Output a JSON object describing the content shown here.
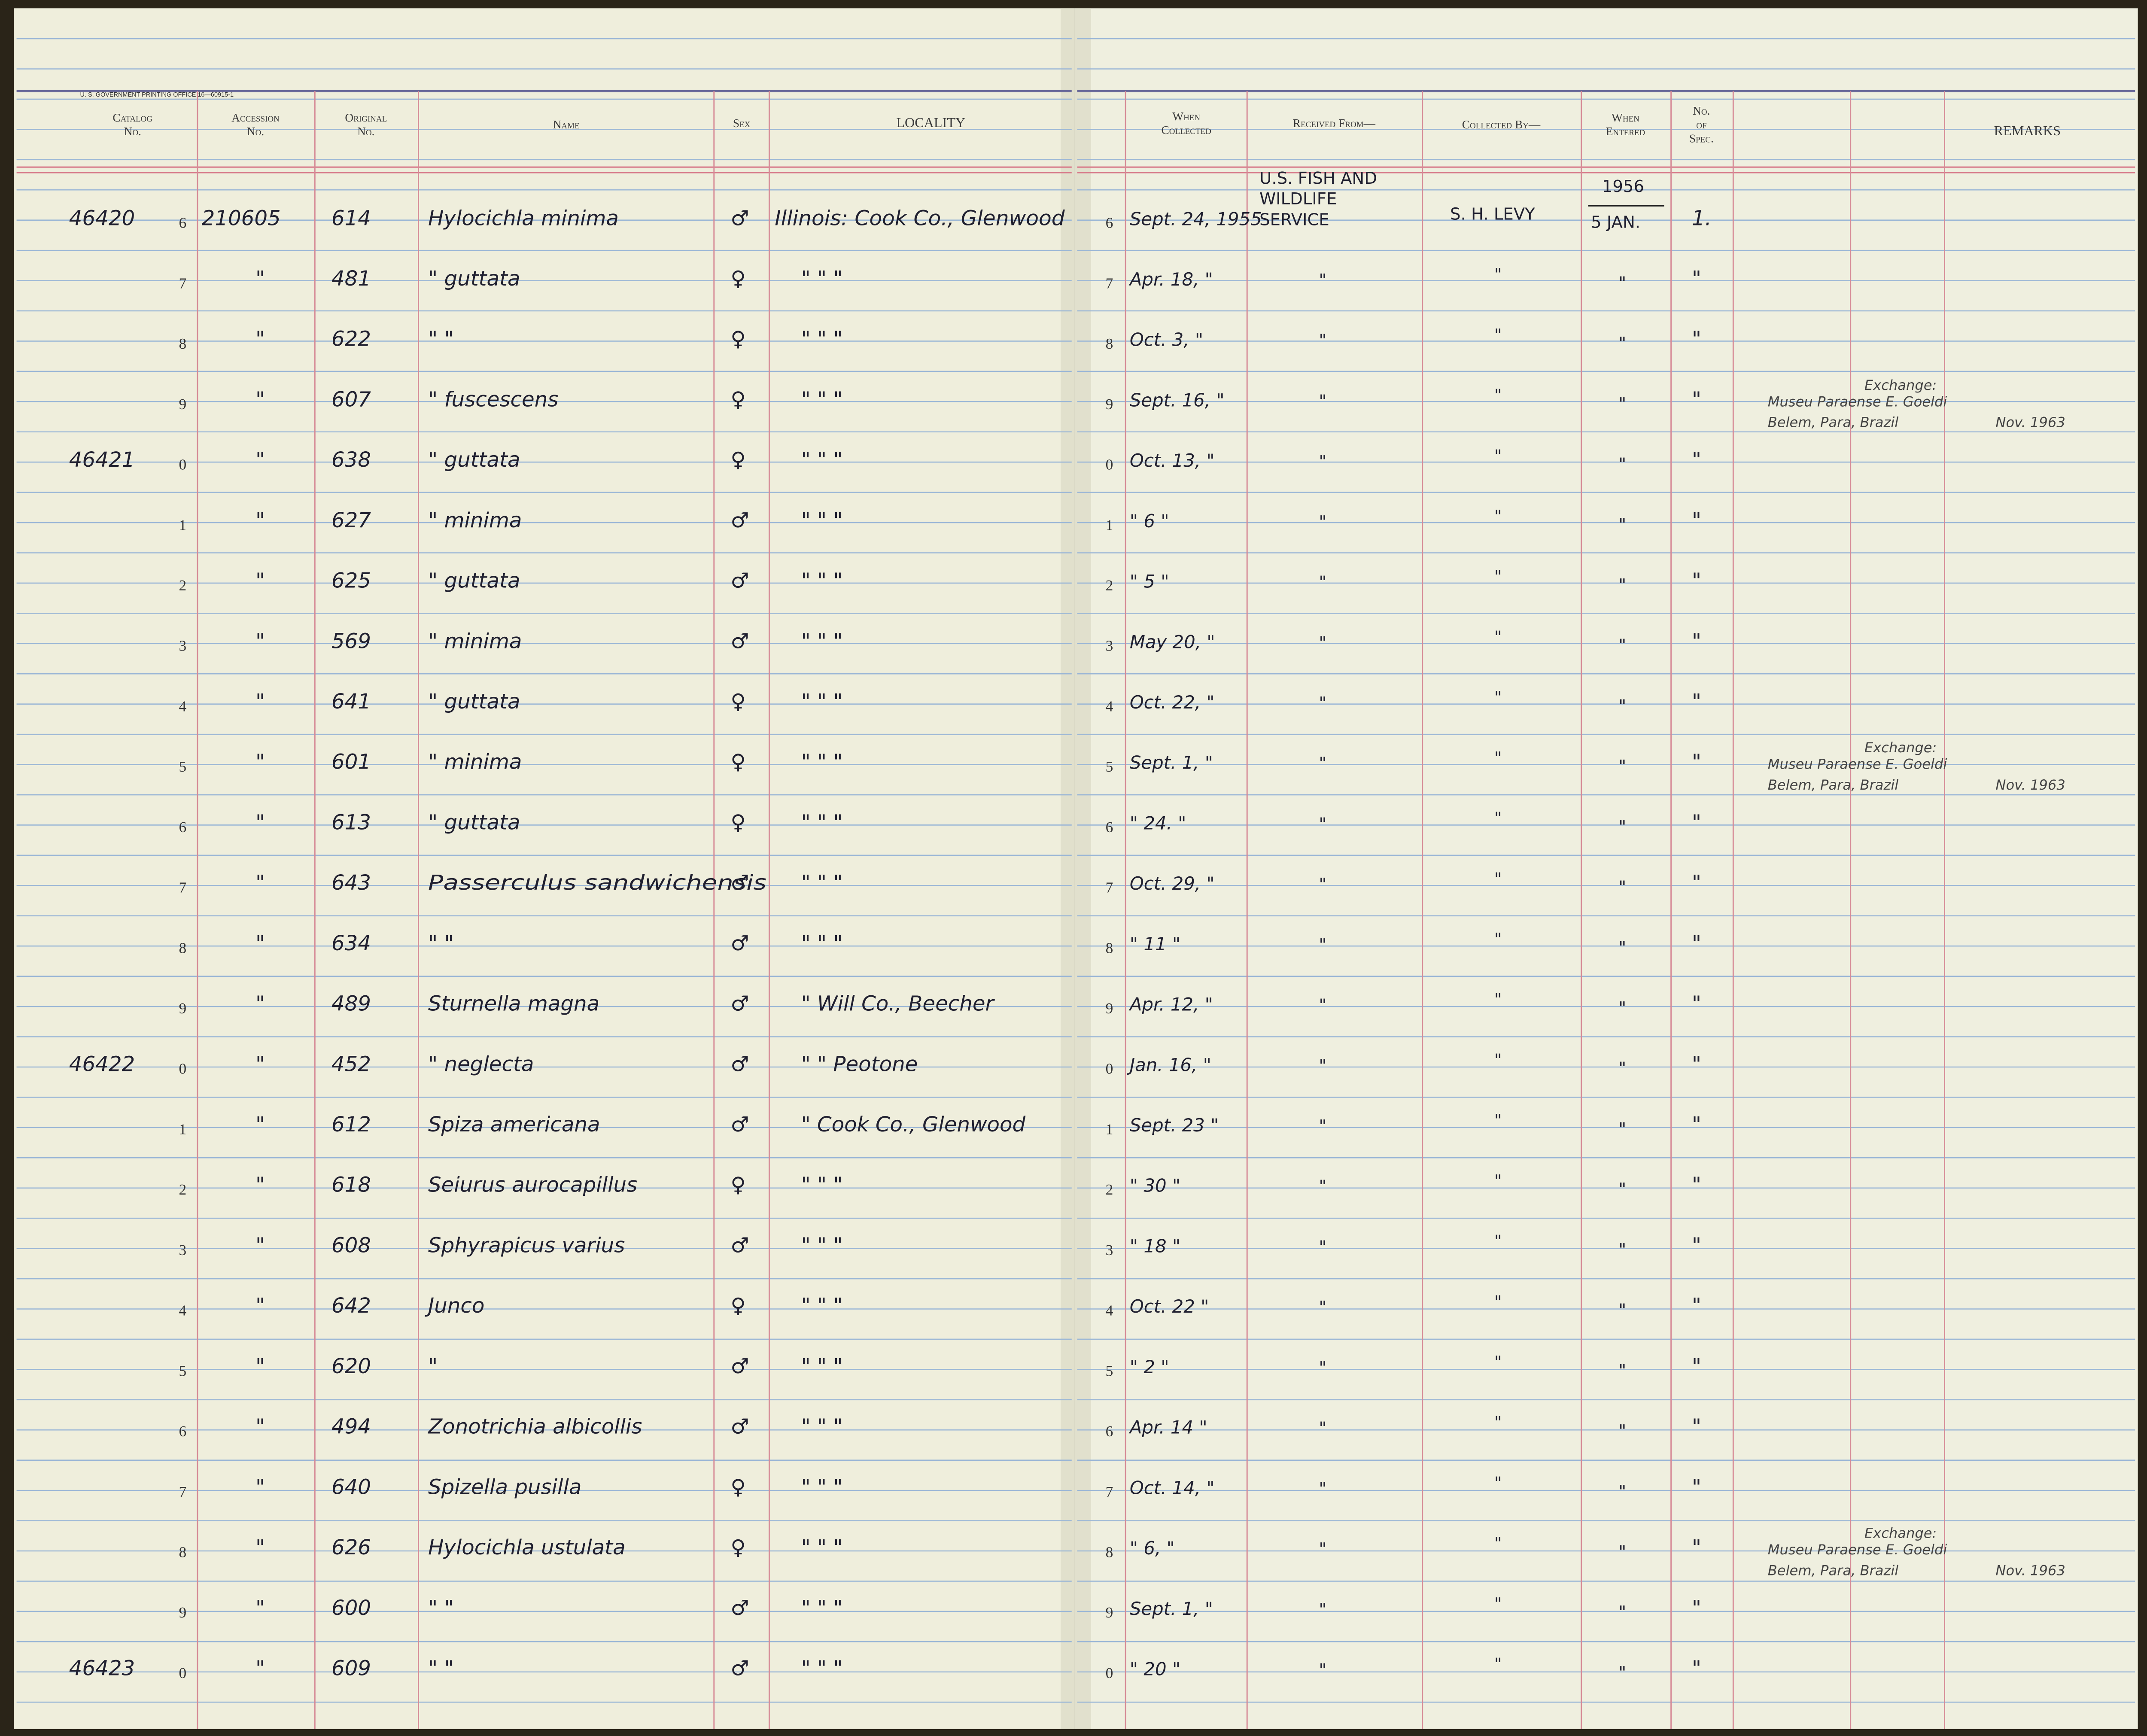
{
  "header": {
    "printer": "U. S. GOVERNMENT PRINTING OFFICE   16—60915-1",
    "columns": {
      "catalog": [
        "Catalog",
        "No."
      ],
      "accession": [
        "Accession",
        "No."
      ],
      "original": [
        "Original",
        "No."
      ],
      "name": "Name",
      "sex": "Sex",
      "locality": "LOCALITY",
      "when_collected": [
        "When",
        "Collected"
      ],
      "received_from": "Received From—",
      "collected_by": "Collected By—",
      "when_entered": [
        "When",
        "Entered"
      ],
      "no_spec": [
        "No.",
        "of",
        "Spec."
      ],
      "remarks": "REMARKS"
    }
  },
  "rows": [
    {
      "catalog": "46420",
      "digit": "6",
      "accession": "210605",
      "original": "614",
      "name": "Hylocichla minima",
      "sex": "♂",
      "locality": "Illinois: Cook Co., Glenwood",
      "when_collected": "Sept. 24, 1955",
      "received_from": [
        "U.S. FISH AND",
        "WILDLIFE",
        "SERVICE"
      ],
      "collected_by": "S. H. LEVY",
      "when_entered": [
        "1956",
        "5 JAN."
      ],
      "no_spec": "1."
    },
    {
      "digit": "7",
      "accession": "\"",
      "original": "481",
      "name": "\"   guttata",
      "sex": "♀",
      "locality": "\"        \"        \"",
      "when_collected": "Apr. 18, \"",
      "received_from": [
        "\""
      ],
      "collected_by": "\"",
      "when_entered": [
        "\""
      ],
      "no_spec": "\""
    },
    {
      "digit": "8",
      "accession": "\"",
      "original": "622",
      "name": "\"        \"",
      "sex": "♀",
      "locality": "\"        \"        \"",
      "when_collected": "Oct. 3, \"",
      "received_from": [
        "\""
      ],
      "collected_by": "\"",
      "when_entered": [
        "\""
      ],
      "no_spec": "\""
    },
    {
      "digit": "9",
      "accession": "\"",
      "original": "607",
      "name": "\"   fuscescens",
      "sex": "♀",
      "locality": "\"        \"        \"",
      "when_collected": "Sept. 16, \"",
      "received_from": [
        "\""
      ],
      "collected_by": "\"",
      "when_entered": [
        "\""
      ],
      "no_spec": "\"",
      "remarks": {
        "note": "Exchange:",
        "lines": [
          "Museu Paraense E. Goeldi",
          "Belem, Para, Brazil"
        ],
        "date": "Nov. 1963"
      }
    },
    {
      "catalog": "46421",
      "digit": "0",
      "accession": "\"",
      "original": "638",
      "name": "\"   guttata",
      "sex": "♀",
      "locality": "\"        \"        \"",
      "when_collected": "Oct. 13, \"",
      "received_from": [
        "\""
      ],
      "collected_by": "\"",
      "when_entered": [
        "\""
      ],
      "no_spec": "\""
    },
    {
      "digit": "1",
      "accession": "\"",
      "original": "627",
      "name": "\"   minima",
      "sex": "♂",
      "locality": "\"        \"        \"",
      "when_collected": "\"  6  \"",
      "received_from": [
        "\""
      ],
      "collected_by": "\"",
      "when_entered": [
        "\""
      ],
      "no_spec": "\""
    },
    {
      "digit": "2",
      "accession": "\"",
      "original": "625",
      "name": "\"   guttata",
      "sex": "♂",
      "locality": "\"        \"        \"",
      "when_collected": "\"  5  \"",
      "received_from": [
        "\""
      ],
      "collected_by": "\"",
      "when_entered": [
        "\""
      ],
      "no_spec": "\""
    },
    {
      "digit": "3",
      "accession": "\"",
      "original": "569",
      "name": "\"   minima",
      "sex": "♂",
      "locality": "\"        \"        \"",
      "when_collected": "May 20, \"",
      "received_from": [
        "\""
      ],
      "collected_by": "\"",
      "when_entered": [
        "\""
      ],
      "no_spec": "\""
    },
    {
      "digit": "4",
      "accession": "\"",
      "original": "641",
      "name": "\"   guttata",
      "sex": "♀",
      "locality": "\"        \"        \"",
      "when_collected": "Oct. 22, \"",
      "received_from": [
        "\""
      ],
      "collected_by": "\"",
      "when_entered": [
        "\""
      ],
      "no_spec": "\""
    },
    {
      "digit": "5",
      "accession": "\"",
      "original": "601",
      "name": "\"   minima",
      "sex": "♀",
      "locality": "\"        \"        \"",
      "when_collected": "Sept. 1, \"",
      "received_from": [
        "\""
      ],
      "collected_by": "\"",
      "when_entered": [
        "\""
      ],
      "no_spec": "\"",
      "remarks": {
        "note": "Exchange:",
        "lines": [
          "Museu Paraense E. Goeldi",
          "Belem, Para, Brazil"
        ],
        "date": "Nov. 1963"
      }
    },
    {
      "digit": "6",
      "accession": "\"",
      "original": "613",
      "name": "\"   guttata",
      "sex": "♀",
      "locality": "\"        \"        \"",
      "when_collected": "\"  24.  \"",
      "received_from": [
        "\""
      ],
      "collected_by": "\"",
      "when_entered": [
        "\""
      ],
      "no_spec": "\""
    },
    {
      "digit": "7",
      "accession": "\"",
      "original": "643",
      "name": "Passerculus sandwichensis",
      "sex": "♂",
      "locality": "\"        \"        \"",
      "when_collected": "Oct. 29, \"",
      "received_from": [
        "\""
      ],
      "collected_by": "\"",
      "when_entered": [
        "\""
      ],
      "no_spec": "\""
    },
    {
      "digit": "8",
      "accession": "\"",
      "original": "634",
      "name": "\"        \"",
      "sex": "♂",
      "locality": "\"        \"        \"",
      "when_collected": "\"  11  \"",
      "received_from": [
        "\""
      ],
      "collected_by": "\"",
      "when_entered": [
        "\""
      ],
      "no_spec": "\""
    },
    {
      "digit": "9",
      "accession": "\"",
      "original": "489",
      "name": "Sturnella magna",
      "sex": "♂",
      "locality": "\"   Will Co., Beecher",
      "when_collected": "Apr. 12, \"",
      "received_from": [
        "\""
      ],
      "collected_by": "\"",
      "when_entered": [
        "\""
      ],
      "no_spec": "\""
    },
    {
      "catalog": "46422",
      "digit": "0",
      "accession": "\"",
      "original": "452",
      "name": "\"   neglecta",
      "sex": "♂",
      "locality": "\"     \"     Peotone",
      "when_collected": "Jan. 16, \"",
      "received_from": [
        "\""
      ],
      "collected_by": "\"",
      "when_entered": [
        "\""
      ],
      "no_spec": "\""
    },
    {
      "digit": "1",
      "accession": "\"",
      "original": "612",
      "name": "Spiza americana",
      "sex": "♂",
      "locality": "\"   Cook Co., Glenwood",
      "when_collected": "Sept. 23 \"",
      "received_from": [
        "\""
      ],
      "collected_by": "\"",
      "when_entered": [
        "\""
      ],
      "no_spec": "\""
    },
    {
      "digit": "2",
      "accession": "\"",
      "original": "618",
      "name": "Seiurus aurocapillus",
      "sex": "♀",
      "locality": "\"        \"        \"",
      "when_collected": "\"  30  \"",
      "received_from": [
        "\""
      ],
      "collected_by": "\"",
      "when_entered": [
        "\""
      ],
      "no_spec": "\""
    },
    {
      "digit": "3",
      "accession": "\"",
      "original": "608",
      "name": "Sphyrapicus varius",
      "sex": "♂",
      "locality": "\"        \"        \"",
      "when_collected": "\"  18  \"",
      "received_from": [
        "\""
      ],
      "collected_by": "\"",
      "when_entered": [
        "\""
      ],
      "no_spec": "\""
    },
    {
      "digit": "4",
      "accession": "\"",
      "original": "642",
      "name": "Junco",
      "sex": "♀",
      "locality": "\"        \"        \"",
      "when_collected": "Oct. 22 \"",
      "received_from": [
        "\""
      ],
      "collected_by": "\"",
      "when_entered": [
        "\""
      ],
      "no_spec": "\""
    },
    {
      "digit": "5",
      "accession": "\"",
      "original": "620",
      "name": "\"",
      "sex": "♂",
      "locality": "\"        \"        \"",
      "when_collected": "\"  2  \"",
      "received_from": [
        "\""
      ],
      "collected_by": "\"",
      "when_entered": [
        "\""
      ],
      "no_spec": "\""
    },
    {
      "digit": "6",
      "accession": "\"",
      "original": "494",
      "name": "Zonotrichia albicollis",
      "sex": "♂",
      "locality": "\"        \"        \"",
      "when_collected": "Apr. 14 \"",
      "received_from": [
        "\""
      ],
      "collected_by": "\"",
      "when_entered": [
        "\""
      ],
      "no_spec": "\""
    },
    {
      "digit": "7",
      "accession": "\"",
      "original": "640",
      "name": "Spizella pusilla",
      "sex": "♀",
      "locality": "\"        \"        \"",
      "when_collected": "Oct. 14, \"",
      "received_from": [
        "\""
      ],
      "collected_by": "\"",
      "when_entered": [
        "\""
      ],
      "no_spec": "\""
    },
    {
      "digit": "8",
      "accession": "\"",
      "original": "626",
      "name": "Hylocichla ustulata",
      "sex": "♀",
      "locality": "\"        \"        \"",
      "when_collected": "\"  6,  \"",
      "received_from": [
        "\""
      ],
      "collected_by": "\"",
      "when_entered": [
        "\""
      ],
      "no_spec": "\"",
      "remarks": {
        "note": "Exchange:",
        "lines": [
          "Museu Paraense E. Goeldi",
          "Belem, Para, Brazil"
        ],
        "date": "Nov. 1963"
      }
    },
    {
      "digit": "9",
      "accession": "\"",
      "original": "600",
      "name": "\"        \"",
      "sex": "♂",
      "locality": "\"        \"        \"",
      "when_collected": "Sept. 1, \"",
      "received_from": [
        "\""
      ],
      "collected_by": "\"",
      "when_entered": [
        "\""
      ],
      "no_spec": "\""
    },
    {
      "catalog": "46423",
      "digit": "0",
      "accession": "\"",
      "original": "609",
      "name": "\"        \"",
      "sex": "♂",
      "locality": "\"        \"        \"",
      "when_collected": "\"  20  \"",
      "received_from": [
        "\""
      ],
      "collected_by": "\"",
      "when_entered": [
        "\""
      ],
      "no_spec": "\""
    }
  ]
}
